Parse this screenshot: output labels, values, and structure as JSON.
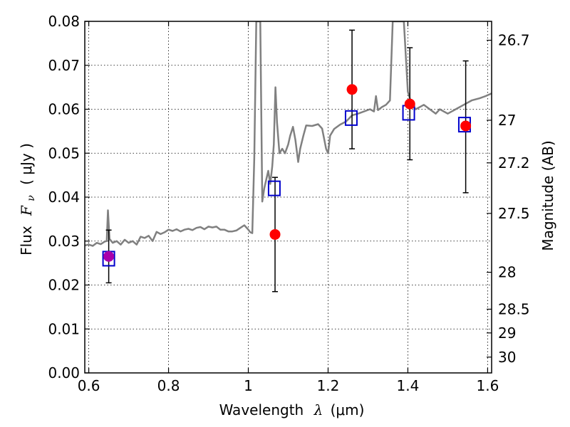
{
  "chart_data": {
    "type": "scatter",
    "xlabel": {
      "text": "Wavelength",
      "symbol": "λ",
      "unit": "(μm)"
    },
    "ylabel": {
      "text": "Flux",
      "symbol": "F",
      "subscript": "ν",
      "unit": "( μJy )"
    },
    "ylabel_right": "Magnitude (AB)",
    "xlim": [
      0.59,
      1.61
    ],
    "ylim": [
      0.0,
      0.08
    ],
    "x_ticks": [
      0.6,
      0.8,
      1.0,
      1.2,
      1.4,
      1.6
    ],
    "x_tick_labels": [
      "0.6",
      "0.8",
      "1",
      "1.2",
      "1.4",
      "1.6"
    ],
    "y_ticks": [
      0.0,
      0.01,
      0.02,
      0.03,
      0.04,
      0.05,
      0.06,
      0.07,
      0.08
    ],
    "y_tick_labels": [
      "0.00",
      "0.01",
      "0.02",
      "0.03",
      "0.04",
      "0.05",
      "0.06",
      "0.07",
      "0.08"
    ],
    "right_ticks": [
      {
        "label": "26.7",
        "flux": 0.0757
      },
      {
        "label": "27",
        "flux": 0.0575
      },
      {
        "label": "27.2",
        "flux": 0.0478
      },
      {
        "label": "27.5",
        "flux": 0.0363
      },
      {
        "label": "28",
        "flux": 0.0229
      },
      {
        "label": "28.5",
        "flux": 0.0145
      },
      {
        "label": "29",
        "flux": 0.0091
      },
      {
        "label": "30",
        "flux": 0.0036
      }
    ],
    "grid": true,
    "colors": {
      "spectrum": "#808080",
      "observed": "#ff0000",
      "model": "#0000cc",
      "errorbar": "#000000",
      "overlap": "#aa00aa"
    },
    "series": [
      {
        "kind": "line",
        "points": [
          [
            0.59,
            0.029
          ],
          [
            0.6,
            0.0292
          ],
          [
            0.61,
            0.0289
          ],
          [
            0.62,
            0.0296
          ],
          [
            0.63,
            0.0293
          ],
          [
            0.64,
            0.0299
          ],
          [
            0.645,
            0.03
          ],
          [
            0.648,
            0.037
          ],
          [
            0.652,
            0.0305
          ],
          [
            0.66,
            0.0296
          ],
          [
            0.67,
            0.03
          ],
          [
            0.68,
            0.0292
          ],
          [
            0.69,
            0.0303
          ],
          [
            0.7,
            0.0296
          ],
          [
            0.71,
            0.03
          ],
          [
            0.72,
            0.0292
          ],
          [
            0.73,
            0.031
          ],
          [
            0.74,
            0.0307
          ],
          [
            0.75,
            0.0312
          ],
          [
            0.76,
            0.03
          ],
          [
            0.77,
            0.0321
          ],
          [
            0.78,
            0.0316
          ],
          [
            0.79,
            0.032
          ],
          [
            0.8,
            0.0326
          ],
          [
            0.81,
            0.0323
          ],
          [
            0.82,
            0.0327
          ],
          [
            0.83,
            0.0322
          ],
          [
            0.84,
            0.0326
          ],
          [
            0.85,
            0.0328
          ],
          [
            0.86,
            0.0325
          ],
          [
            0.87,
            0.033
          ],
          [
            0.88,
            0.0332
          ],
          [
            0.89,
            0.0327
          ],
          [
            0.9,
            0.0333
          ],
          [
            0.91,
            0.0331
          ],
          [
            0.92,
            0.0333
          ],
          [
            0.93,
            0.0326
          ],
          [
            0.94,
            0.0326
          ],
          [
            0.95,
            0.0322
          ],
          [
            0.96,
            0.0322
          ],
          [
            0.97,
            0.0324
          ],
          [
            0.98,
            0.033
          ],
          [
            0.99,
            0.0336
          ],
          [
            1.0,
            0.0326
          ],
          [
            1.005,
            0.032
          ],
          [
            1.01,
            0.0318
          ],
          [
            1.015,
            0.049
          ],
          [
            1.02,
            0.08
          ],
          [
            1.03,
            0.08
          ],
          [
            1.035,
            0.039
          ],
          [
            1.04,
            0.042
          ],
          [
            1.045,
            0.044
          ],
          [
            1.05,
            0.046
          ],
          [
            1.055,
            0.043
          ],
          [
            1.06,
            0.047
          ],
          [
            1.064,
            0.052
          ],
          [
            1.068,
            0.065
          ],
          [
            1.072,
            0.057
          ],
          [
            1.078,
            0.05
          ],
          [
            1.085,
            0.051
          ],
          [
            1.092,
            0.05
          ],
          [
            1.1,
            0.052
          ],
          [
            1.105,
            0.054
          ],
          [
            1.112,
            0.056
          ],
          [
            1.118,
            0.053
          ],
          [
            1.125,
            0.048
          ],
          [
            1.13,
            0.051
          ],
          [
            1.138,
            0.054
          ],
          [
            1.145,
            0.0563
          ],
          [
            1.16,
            0.0562
          ],
          [
            1.175,
            0.0566
          ],
          [
            1.185,
            0.0556
          ],
          [
            1.195,
            0.051
          ],
          [
            1.2,
            0.05
          ],
          [
            1.205,
            0.054
          ],
          [
            1.215,
            0.0555
          ],
          [
            1.23,
            0.0565
          ],
          [
            1.245,
            0.0572
          ],
          [
            1.26,
            0.0586
          ],
          [
            1.275,
            0.059
          ],
          [
            1.29,
            0.0595
          ],
          [
            1.305,
            0.06
          ],
          [
            1.315,
            0.0595
          ],
          [
            1.32,
            0.063
          ],
          [
            1.325,
            0.0598
          ],
          [
            1.335,
            0.0605
          ],
          [
            1.345,
            0.061
          ],
          [
            1.355,
            0.062
          ],
          [
            1.362,
            0.08
          ],
          [
            1.37,
            0.08
          ],
          [
            1.38,
            0.08
          ],
          [
            1.39,
            0.08
          ],
          [
            1.4,
            0.064
          ],
          [
            1.41,
            0.061
          ],
          [
            1.42,
            0.06
          ],
          [
            1.44,
            0.061
          ],
          [
            1.455,
            0.06
          ],
          [
            1.47,
            0.059
          ],
          [
            1.48,
            0.06
          ],
          [
            1.5,
            0.059
          ],
          [
            1.52,
            0.06
          ],
          [
            1.54,
            0.061
          ],
          [
            1.56,
            0.062
          ],
          [
            1.58,
            0.0625
          ],
          [
            1.595,
            0.063
          ],
          [
            1.61,
            0.0636
          ]
        ]
      },
      {
        "kind": "errorbar",
        "x": [
          0.65,
          1.067,
          1.26,
          1.405,
          1.545
        ],
        "y": [
          0.0265,
          0.0315,
          0.0645,
          0.0612,
          0.0562
        ],
        "yerr_low": [
          0.0205,
          0.0185,
          0.051,
          0.0485,
          0.041
        ],
        "yerr_high": [
          0.0325,
          0.0445,
          0.078,
          0.074,
          0.071
        ]
      },
      {
        "kind": "model",
        "x": [
          0.65,
          1.065,
          1.258,
          1.402,
          1.542
        ],
        "y": [
          0.026,
          0.042,
          0.058,
          0.0592,
          0.0565
        ]
      }
    ]
  }
}
